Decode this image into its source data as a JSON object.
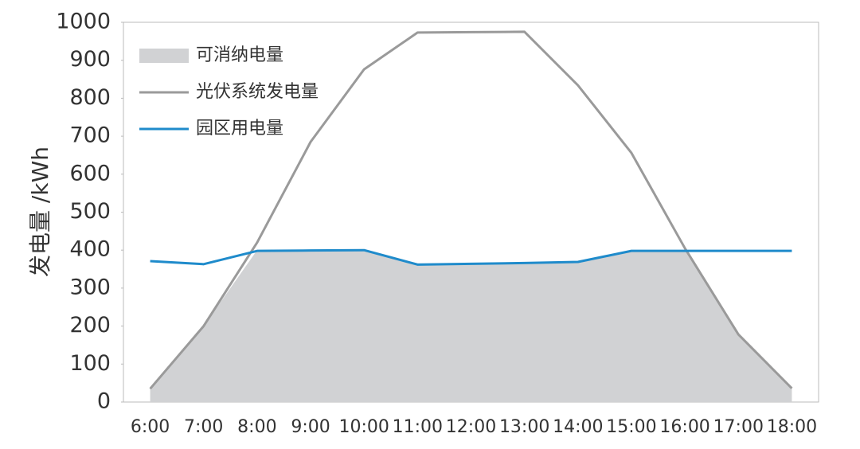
{
  "chart_data": {
    "type": "line",
    "y_label": "发电量 /kWh",
    "categories": [
      "6:00",
      "7:00",
      "8:00",
      "9:00",
      "10:00",
      "11:00",
      "12:00",
      "13:00",
      "14:00",
      "15:00",
      "16:00",
      "17:00",
      "18:00"
    ],
    "series": [
      {
        "name": "可消纳电量",
        "color": "#d1d2d4",
        "values": [
          35,
          200,
          400,
          400,
          400,
          365,
          365,
          367,
          370,
          400,
          400,
          180,
          35
        ]
      },
      {
        "name": "光伏系统发电量",
        "color": "#9a9a9a",
        "values": [
          35,
          200,
          420,
          685,
          876,
          973,
          974,
          975,
          834,
          656,
          405,
          178,
          36
        ]
      },
      {
        "name": "园区用电量",
        "color": "#1f8bcb",
        "values": [
          371,
          363,
          398,
          399,
          400,
          362,
          364,
          366,
          369,
          398,
          398,
          398,
          398
        ]
      }
    ],
    "ylim": [
      0,
      1000
    ],
    "yticks": [
      0,
      100,
      200,
      300,
      400,
      500,
      600,
      700,
      800,
      900,
      1000
    ]
  }
}
